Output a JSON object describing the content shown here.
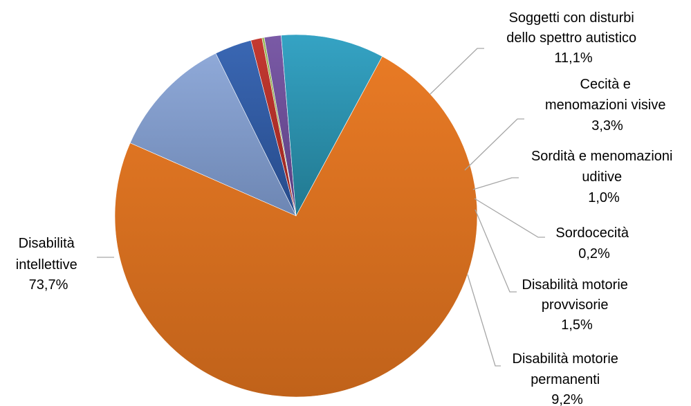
{
  "chart_data": {
    "type": "pie",
    "title": "",
    "slices": [
      {
        "label": "Disabilità intellettive",
        "line_parts": [
          "Disabilità",
          "intellettive",
          "73,7%"
        ],
        "value": 73.7,
        "color": "#e87a25",
        "dark": "#c0621a"
      },
      {
        "label": "Soggetti con disturbi dello spettro autistico",
        "line_parts": [
          "Soggetti con disturbi",
          "dello spettro autistico",
          "11,1%"
        ],
        "value": 11.1,
        "color": "#8fa9d8",
        "dark": "#6d86b3"
      },
      {
        "label": "Cecità e menomazioni visive",
        "line_parts": [
          "Cecità e",
          "menomazioni visive",
          "3,3%"
        ],
        "value": 3.3,
        "color": "#3a67b3",
        "dark": "#264a8a"
      },
      {
        "label": "Sordità e menomazioni uditive",
        "line_parts": [
          "Sordità e menomazioni",
          "uditive",
          "1,0%"
        ],
        "value": 1.0,
        "color": "#c43a32",
        "dark": "#97241f"
      },
      {
        "label": "Sordocecità",
        "line_parts": [
          "Sordocecità",
          "0,2%"
        ],
        "value": 0.2,
        "color": "#9bbb59",
        "dark": "#76923c"
      },
      {
        "label": "Disabilità motorie provvisorie",
        "line_parts": [
          "Disabilità motorie",
          "provvisorie",
          "1,5%"
        ],
        "value": 1.5,
        "color": "#7a5aa6",
        "dark": "#5b3f82"
      },
      {
        "label": "Disabilità motorie permanenti",
        "line_parts": [
          "Disabilità motorie",
          "permanenti",
          "9,2%"
        ],
        "value": 9.2,
        "color": "#35a3c4",
        "dark": "#21788f"
      }
    ]
  }
}
